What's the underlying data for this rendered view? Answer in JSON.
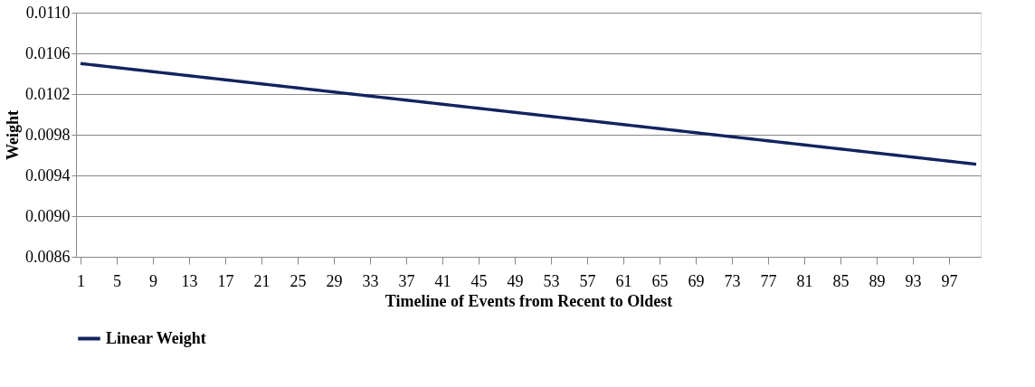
{
  "chart_data": {
    "type": "line",
    "xlabel": "Timeline of Events from Recent to Oldest",
    "ylabel": "Weight",
    "categories": [
      "1",
      null,
      null,
      null,
      "5",
      null,
      null,
      null,
      "9",
      null,
      null,
      null,
      "13",
      null,
      null,
      null,
      "17",
      null,
      null,
      null,
      "21",
      null,
      null,
      null,
      "25",
      null,
      null,
      null,
      "29",
      null,
      null,
      null,
      "33",
      null,
      null,
      null,
      "37",
      null,
      null,
      null,
      "41",
      null,
      null,
      null,
      "45",
      null,
      null,
      null,
      "49",
      null,
      null,
      null,
      "53",
      null,
      null,
      null,
      "57",
      null,
      null,
      null,
      "61",
      null,
      null,
      null,
      "65",
      null,
      null,
      null,
      "69",
      null,
      null,
      null,
      "73",
      null,
      null,
      null,
      "77",
      null,
      null,
      null,
      "81",
      null,
      null,
      null,
      "85",
      null,
      null,
      null,
      "89",
      null,
      null,
      null,
      "93",
      null,
      null,
      null,
      "97",
      null,
      null,
      null
    ],
    "series": [
      {
        "name": "Linear Weight",
        "color": "#13235e",
        "values": [
          0.0105,
          0.01049,
          0.01048,
          0.01047,
          0.01046,
          0.01045,
          0.01044,
          0.01043,
          0.01042,
          0.01041,
          0.0104,
          0.01039,
          0.01038,
          0.01037,
          0.01036,
          0.01035,
          0.01034,
          0.01033,
          0.01032,
          0.01031,
          0.0103,
          0.01029,
          0.01028,
          0.01027,
          0.01026,
          0.01025,
          0.01024,
          0.01023,
          0.01022,
          0.01021,
          0.0102,
          0.01019,
          0.01018,
          0.01017,
          0.01016,
          0.01015,
          0.01014,
          0.01013,
          0.01012,
          0.01011,
          0.0101,
          0.01009,
          0.01008,
          0.01007,
          0.01006,
          0.01005,
          0.01004,
          0.01003,
          0.01002,
          0.01001,
          0.01,
          0.00999,
          0.00998,
          0.00997,
          0.00996,
          0.00995,
          0.00994,
          0.00993,
          0.00992,
          0.00991,
          0.0099,
          0.00989,
          0.00988,
          0.00987,
          0.00986,
          0.00985,
          0.00984,
          0.00983,
          0.00982,
          0.00981,
          0.0098,
          0.00979,
          0.00978,
          0.00977,
          0.00976,
          0.00975,
          0.00974,
          0.00973,
          0.00972,
          0.00971,
          0.0097,
          0.00969,
          0.00968,
          0.00967,
          0.00966,
          0.00965,
          0.00964,
          0.00963,
          0.00962,
          0.00961,
          0.0096,
          0.00959,
          0.00958,
          0.00957,
          0.00956,
          0.00955,
          0.00954,
          0.00953,
          0.00952,
          0.00951
        ]
      }
    ],
    "ylim": [
      0.0086,
      0.011
    ],
    "yticks": [
      {
        "value": 0.0086,
        "label": "0.0086"
      },
      {
        "value": 0.009,
        "label": "0.0090"
      },
      {
        "value": 0.0094,
        "label": "0.0094"
      },
      {
        "value": 0.0098,
        "label": "0.0098"
      },
      {
        "value": 0.0102,
        "label": "0.0102"
      },
      {
        "value": 0.0106,
        "label": "0.0106"
      },
      {
        "value": 0.011,
        "label": "0.0110"
      }
    ],
    "grid": "y",
    "legend": "bottom",
    "marker": "none",
    "line_style": "solid"
  }
}
